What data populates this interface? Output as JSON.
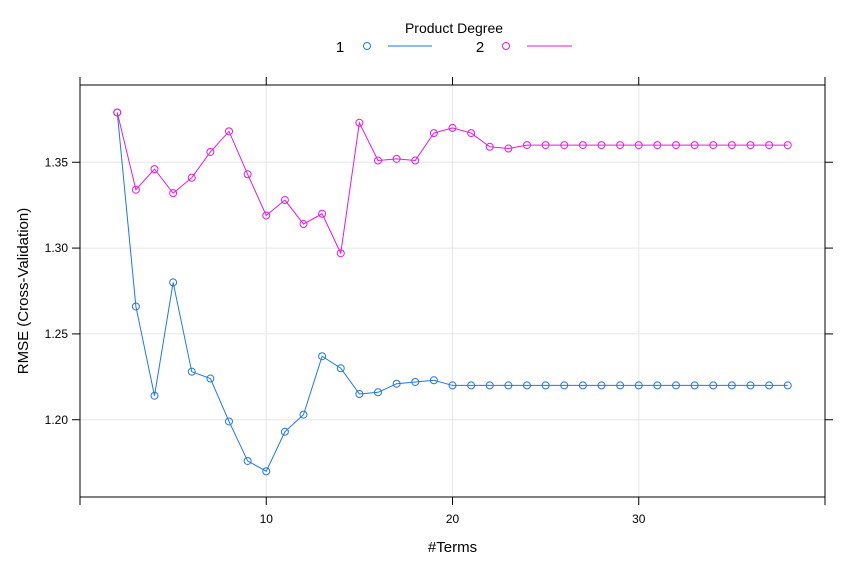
{
  "chart_data": {
    "type": "line",
    "xlabel": "#Terms",
    "ylabel": "RMSE (Cross-Validation)",
    "xlim": [
      0,
      40
    ],
    "ylim": [
      1.155,
      1.395
    ],
    "xticks": [
      10,
      20,
      30
    ],
    "yticks": [
      1.2,
      1.25,
      1.3,
      1.35
    ],
    "xtick_labels": [
      "10",
      "20",
      "30"
    ],
    "ytick_labels": [
      "1.20",
      "1.25",
      "1.30",
      "1.35"
    ],
    "grid": true,
    "legend": {
      "title": "Product Degree",
      "placement": "top",
      "entries": [
        "1",
        "2"
      ]
    },
    "x": [
      2,
      3,
      4,
      5,
      6,
      7,
      8,
      9,
      10,
      11,
      12,
      13,
      14,
      15,
      16,
      17,
      18,
      19,
      20,
      21,
      22,
      23,
      24,
      25,
      26,
      27,
      28,
      29,
      30,
      31,
      32,
      33,
      34,
      35,
      36,
      37,
      38
    ],
    "series": [
      {
        "name": "1",
        "color": "#1f77e8",
        "values": [
          1.379,
          1.266,
          1.214,
          1.28,
          1.228,
          1.224,
          1.199,
          1.176,
          1.17,
          1.193,
          1.203,
          1.237,
          1.23,
          1.215,
          1.216,
          1.221,
          1.222,
          1.223,
          1.22,
          1.22,
          1.22,
          1.22,
          1.22,
          1.22,
          1.22,
          1.22,
          1.22,
          1.22,
          1.22,
          1.22,
          1.22,
          1.22,
          1.22,
          1.22,
          1.22,
          1.22,
          1.22
        ]
      },
      {
        "name": "2",
        "color": "#e31ae3",
        "values": [
          1.379,
          1.334,
          1.346,
          1.332,
          1.341,
          1.356,
          1.368,
          1.343,
          1.319,
          1.328,
          1.314,
          1.32,
          1.297,
          1.373,
          1.351,
          1.352,
          1.351,
          1.367,
          1.37,
          1.367,
          1.359,
          1.358,
          1.36,
          1.36,
          1.36,
          1.36,
          1.36,
          1.36,
          1.36,
          1.36,
          1.36,
          1.36,
          1.36,
          1.36,
          1.36,
          1.36,
          1.36
        ]
      }
    ]
  }
}
